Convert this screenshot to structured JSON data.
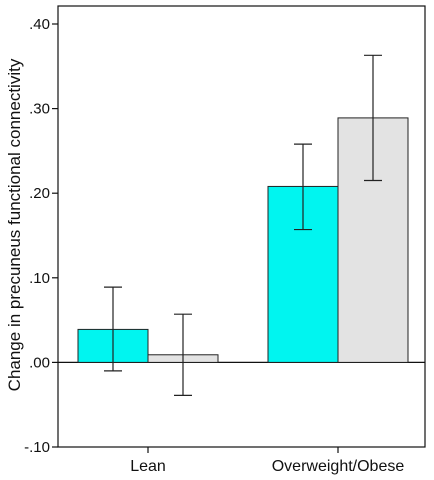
{
  "chart_data": {
    "type": "bar",
    "title": "",
    "xlabel": "",
    "ylabel": "Change in precuneus functional connectivity",
    "ylim": [
      -0.1,
      0.42
    ],
    "yticks": [
      -0.1,
      0.0,
      0.1,
      0.2,
      0.3,
      0.4
    ],
    "ytick_labels": [
      "-.10",
      ".00",
      ".10",
      ".20",
      ".30",
      ".40"
    ],
    "categories": [
      "Lean",
      "Overweight/Obese"
    ],
    "zero_line": true,
    "grid": false,
    "legend": "none",
    "series": [
      {
        "color": "#00f5f0",
        "values": [
          0.039,
          0.208
        ],
        "error_low": [
          -0.01,
          0.157
        ],
        "error_high": [
          0.089,
          0.258
        ]
      },
      {
        "color": "#e3e3e3",
        "values": [
          0.009,
          0.289
        ],
        "error_low": [
          -0.039,
          0.215
        ],
        "error_high": [
          0.057,
          0.363
        ]
      }
    ]
  }
}
